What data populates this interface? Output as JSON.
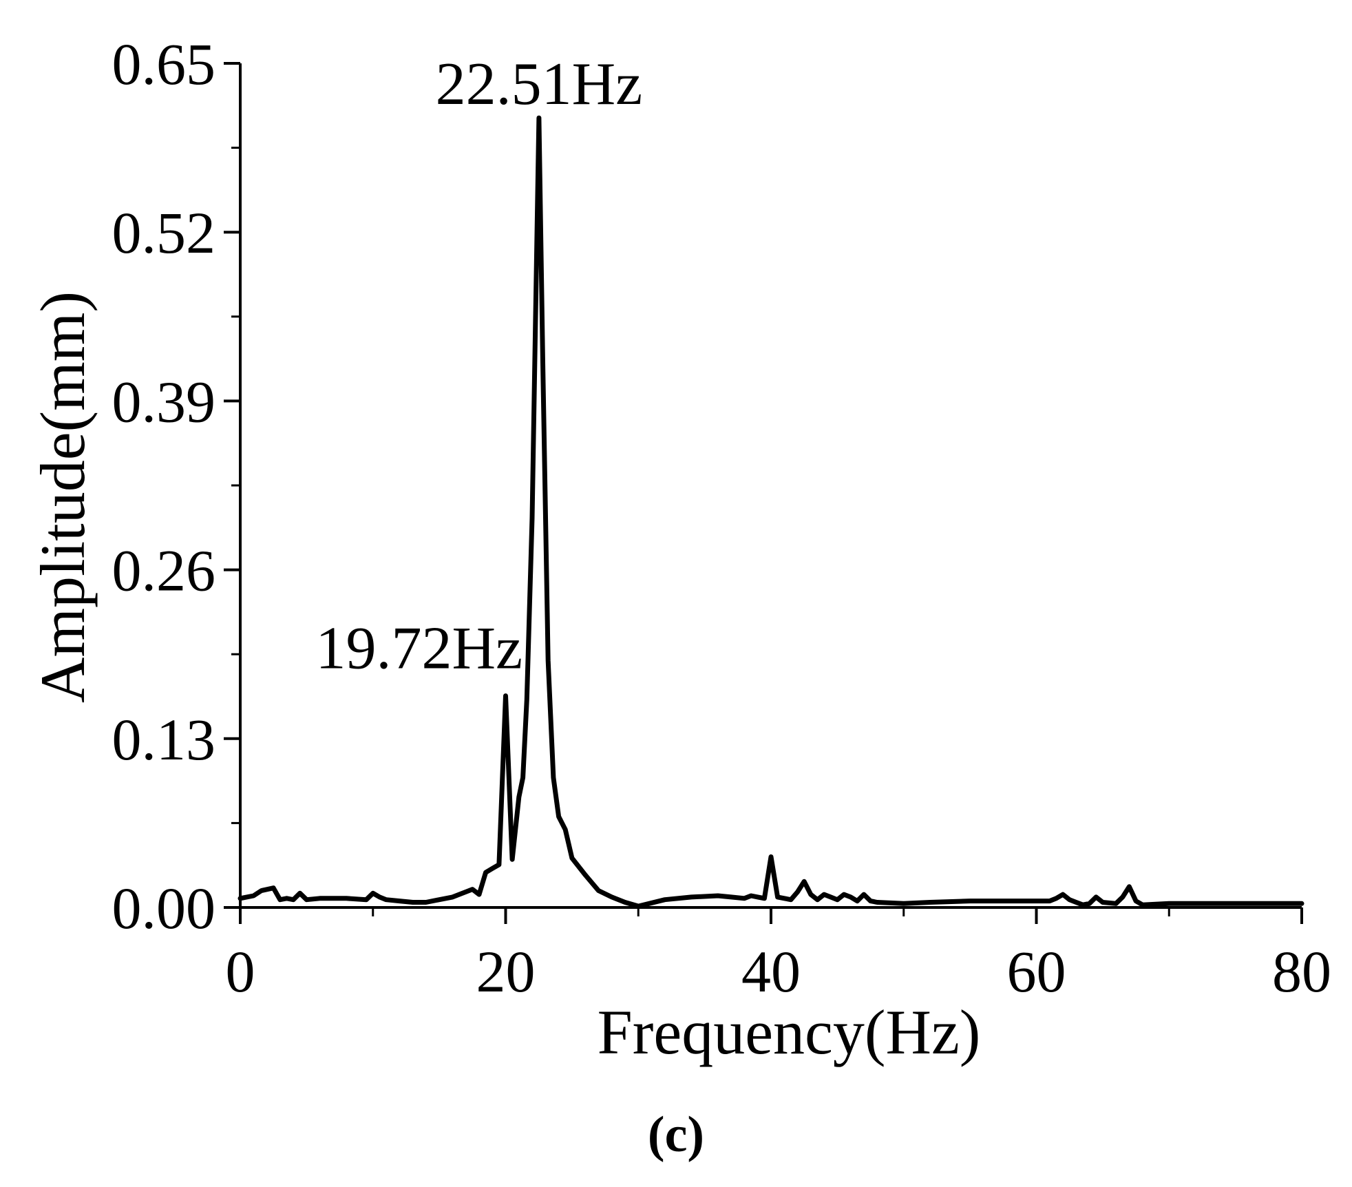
{
  "chart_data": {
    "type": "line",
    "title": "",
    "xlabel": "Frequency(Hz)",
    "ylabel": "Amplitude(mm)",
    "xlim": [
      0,
      80
    ],
    "ylim": [
      0,
      0.65
    ],
    "xticks": [
      0,
      20,
      40,
      60,
      80
    ],
    "xtick_labels": [
      "0",
      "20",
      "40",
      "60",
      "80"
    ],
    "yticks": [
      0,
      0.13,
      0.26,
      0.39,
      0.52,
      0.65
    ],
    "ytick_labels": [
      "0.00",
      "0.13",
      "0.26",
      "0.39",
      "0.52",
      "0.65"
    ],
    "grid": false,
    "legend": "none",
    "line_color": "#000000",
    "series": [
      {
        "x": [
          0,
          1,
          1.6,
          2.5,
          3,
          3.5,
          4,
          4.5,
          5,
          6,
          8,
          9.5,
          10,
          10.5,
          11,
          12,
          13,
          14,
          15,
          16,
          16.5,
          17,
          17.5,
          18,
          18.5,
          19,
          19.5,
          20,
          20.5,
          21,
          21.3,
          21.6,
          22,
          22.3,
          22.51,
          22.8,
          23.2,
          23.6,
          24,
          24.5,
          25,
          26,
          27,
          28,
          29,
          30,
          32,
          34,
          36,
          37,
          38,
          38.5,
          39,
          39.5,
          40,
          40.5,
          41,
          41.5,
          42,
          42.5,
          43,
          43.5,
          44,
          44.5,
          45,
          45.5,
          46,
          46.5,
          47,
          47.5,
          48,
          50,
          52,
          55,
          58,
          61,
          61.5,
          62,
          62.5,
          63,
          63.5,
          64,
          64.5,
          65,
          66,
          66.5,
          67,
          67.5,
          68,
          70,
          75,
          80
        ],
        "y": [
          0.007,
          0.009,
          0.013,
          0.015,
          0.006,
          0.007,
          0.006,
          0.011,
          0.006,
          0.007,
          0.007,
          0.006,
          0.011,
          0.008,
          0.006,
          0.005,
          0.004,
          0.004,
          0.006,
          0.008,
          0.01,
          0.012,
          0.014,
          0.01,
          0.027,
          0.03,
          0.033,
          0.163,
          0.037,
          0.085,
          0.1,
          0.16,
          0.3,
          0.48,
          0.608,
          0.42,
          0.19,
          0.1,
          0.07,
          0.06,
          0.038,
          0.025,
          0.013,
          0.008,
          0.004,
          0.001,
          0.006,
          0.008,
          0.009,
          0.008,
          0.007,
          0.009,
          0.008,
          0.007,
          0.039,
          0.008,
          0.007,
          0.006,
          0.012,
          0.02,
          0.01,
          0.006,
          0.01,
          0.008,
          0.006,
          0.01,
          0.008,
          0.005,
          0.01,
          0.005,
          0.004,
          0.003,
          0.004,
          0.005,
          0.005,
          0.005,
          0.007,
          0.01,
          0.006,
          0.004,
          0.002,
          0.003,
          0.008,
          0.004,
          0.003,
          0.008,
          0.016,
          0.005,
          0.002,
          0.003,
          0.003,
          0.003
        ]
      }
    ],
    "annotations": [
      {
        "text": "22.51Hz",
        "x": 22.51,
        "y": 0.608
      },
      {
        "text": "19.72Hz",
        "x": 19.72,
        "y": 0.163
      }
    ],
    "panel_label": "(c)"
  }
}
